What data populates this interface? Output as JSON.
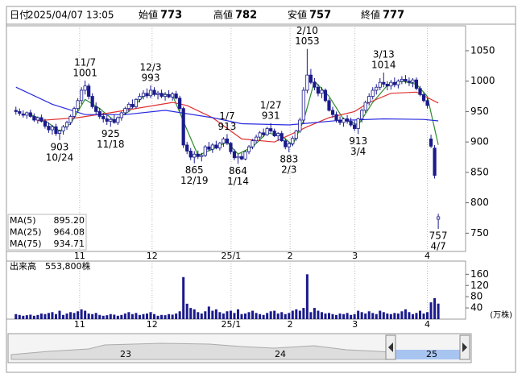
{
  "chart_data": {
    "type": "candlestick",
    "header": [
      {
        "label": "日付",
        "value": "2025/04/07 13:05"
      },
      {
        "label": "始値",
        "value": 773,
        "color": "#000000"
      },
      {
        "label": "高値",
        "value": 782,
        "color": "#dd0000"
      },
      {
        "label": "安値",
        "value": 757,
        "color": "#008000"
      },
      {
        "label": "終値",
        "value": 777,
        "color": "#000000"
      }
    ],
    "ylim": [
      720,
      1091
    ],
    "yticks": [
      750,
      800,
      850,
      900,
      950,
      1000,
      1050
    ],
    "xlim": [
      -2.6,
      123.5
    ],
    "xticks": [
      {
        "value": 17.5,
        "label": "11"
      },
      {
        "value": 37.4,
        "label": "12"
      },
      {
        "value": 59.1,
        "label": "25/1"
      },
      {
        "value": 75.3,
        "label": "2"
      },
      {
        "value": 93.1,
        "label": "3"
      },
      {
        "value": 113,
        "label": "4"
      }
    ],
    "up_color": "#ffffff",
    "down_color": "#1a1a8c",
    "candles": [
      [
        952,
        958,
        945,
        950
      ],
      [
        950,
        955,
        943,
        947
      ],
      [
        946,
        952,
        940,
        944
      ],
      [
        944,
        950,
        938,
        948
      ],
      [
        948,
        953,
        940,
        942
      ],
      [
        942,
        947,
        933,
        936
      ],
      [
        936,
        942,
        930,
        940
      ],
      [
        940,
        945,
        932,
        934
      ],
      [
        934,
        938,
        922,
        926
      ],
      [
        926,
        932,
        915,
        920
      ],
      [
        920,
        928,
        912,
        925
      ],
      [
        925,
        930,
        910,
        914
      ],
      [
        914,
        920,
        903,
        918
      ],
      [
        918,
        928,
        912,
        925
      ],
      [
        925,
        935,
        920,
        932
      ],
      [
        932,
        945,
        928,
        942
      ],
      [
        942,
        958,
        938,
        955
      ],
      [
        955,
        972,
        950,
        968
      ],
      [
        968,
        990,
        962,
        985
      ],
      [
        985,
        1001,
        978,
        992
      ],
      [
        992,
        996,
        970,
        975
      ],
      [
        975,
        980,
        955,
        958
      ],
      [
        958,
        965,
        945,
        950
      ],
      [
        950,
        956,
        938,
        942
      ],
      [
        942,
        948,
        932,
        938
      ],
      [
        938,
        944,
        928,
        934
      ],
      [
        934,
        940,
        925,
        937
      ],
      [
        937,
        945,
        930,
        932
      ],
      [
        932,
        942,
        928,
        940
      ],
      [
        940,
        950,
        935,
        948
      ],
      [
        948,
        958,
        944,
        955
      ],
      [
        955,
        965,
        950,
        962
      ],
      [
        962,
        970,
        955,
        958
      ],
      [
        958,
        972,
        955,
        970
      ],
      [
        970,
        980,
        965,
        975
      ],
      [
        975,
        985,
        970,
        980
      ],
      [
        980,
        988,
        972,
        976
      ],
      [
        976,
        993,
        972,
        985
      ],
      [
        985,
        990,
        975,
        978
      ],
      [
        978,
        984,
        970,
        980
      ],
      [
        980,
        986,
        972,
        975
      ],
      [
        975,
        982,
        968,
        978
      ],
      [
        978,
        985,
        972,
        974
      ],
      [
        974,
        982,
        968,
        979
      ],
      [
        979,
        984,
        970,
        972
      ],
      [
        972,
        976,
        950,
        955
      ],
      [
        955,
        958,
        890,
        895
      ],
      [
        895,
        900,
        880,
        885
      ],
      [
        885,
        890,
        870,
        875
      ],
      [
        875,
        885,
        865,
        880
      ],
      [
        880,
        886,
        872,
        876
      ],
      [
        876,
        882,
        868,
        878
      ],
      [
        878,
        895,
        875,
        892
      ],
      [
        892,
        900,
        885,
        888
      ],
      [
        888,
        898,
        882,
        895
      ],
      [
        895,
        902,
        888,
        890
      ],
      [
        890,
        900,
        886,
        898
      ],
      [
        898,
        908,
        892,
        905
      ],
      [
        905,
        913,
        895,
        898
      ],
      [
        898,
        900,
        880,
        884
      ],
      [
        884,
        888,
        870,
        874
      ],
      [
        874,
        880,
        864,
        876
      ],
      [
        876,
        882,
        870,
        872
      ],
      [
        872,
        886,
        870,
        884
      ],
      [
        884,
        895,
        880,
        892
      ],
      [
        892,
        905,
        888,
        902
      ],
      [
        902,
        912,
        898,
        908
      ],
      [
        908,
        918,
        902,
        915
      ],
      [
        915,
        922,
        908,
        912
      ],
      [
        912,
        925,
        910,
        922
      ],
      [
        922,
        931,
        915,
        918
      ],
      [
        918,
        922,
        908,
        910
      ],
      [
        910,
        916,
        902,
        914
      ],
      [
        914,
        918,
        900,
        902
      ],
      [
        902,
        906,
        888,
        892
      ],
      [
        892,
        900,
        883,
        897
      ],
      [
        897,
        910,
        893,
        906
      ],
      [
        906,
        920,
        902,
        918
      ],
      [
        918,
        940,
        915,
        936
      ],
      [
        936,
        990,
        930,
        985
      ],
      [
        985,
        1053,
        980,
        1010
      ],
      [
        1010,
        1020,
        995,
        998
      ],
      [
        998,
        1005,
        985,
        990
      ],
      [
        990,
        995,
        975,
        980
      ],
      [
        980,
        990,
        972,
        985
      ],
      [
        985,
        988,
        965,
        968
      ],
      [
        968,
        972,
        950,
        952
      ],
      [
        952,
        958,
        940,
        945
      ],
      [
        945,
        950,
        932,
        936
      ],
      [
        936,
        942,
        928,
        932
      ],
      [
        932,
        940,
        925,
        938
      ],
      [
        938,
        944,
        930,
        934
      ],
      [
        934,
        940,
        925,
        928
      ],
      [
        928,
        935,
        918,
        922
      ],
      [
        922,
        940,
        913,
        938
      ],
      [
        938,
        955,
        932,
        952
      ],
      [
        952,
        968,
        948,
        965
      ],
      [
        965,
        980,
        960,
        975
      ],
      [
        975,
        990,
        970,
        985
      ],
      [
        985,
        995,
        978,
        990
      ],
      [
        990,
        1005,
        985,
        998
      ],
      [
        998,
        1014,
        990,
        995
      ],
      [
        995,
        1000,
        985,
        992
      ],
      [
        992,
        1002,
        986,
        998
      ],
      [
        998,
        1006,
        990,
        994
      ],
      [
        994,
        1003,
        988,
        1000
      ],
      [
        1000,
        1008,
        995,
        1003
      ],
      [
        1003,
        1010,
        996,
        1000
      ],
      [
        1000,
        1006,
        992,
        998
      ],
      [
        998,
        1005,
        990,
        1002
      ],
      [
        1002,
        1006,
        985,
        988
      ],
      [
        988,
        992,
        975,
        978
      ],
      [
        978,
        982,
        965,
        968
      ],
      [
        968,
        972,
        955,
        960
      ],
      [
        905,
        912,
        890,
        893
      ],
      [
        890,
        895,
        840,
        845
      ],
      [
        773,
        782,
        757,
        777
      ]
    ],
    "annotations": [
      {
        "x": 12,
        "date": "10/24",
        "value": 903
      },
      {
        "x": 19,
        "date": "11/7",
        "value": 1001
      },
      {
        "x": 26,
        "date": "11/18",
        "value": 925
      },
      {
        "x": 37,
        "date": "12/3",
        "value": 993
      },
      {
        "x": 49,
        "date": "12/19",
        "value": 865
      },
      {
        "x": 58,
        "date": "1/7",
        "value": 913
      },
      {
        "x": 61,
        "date": "1/14",
        "value": 864
      },
      {
        "x": 70,
        "date": "1/27",
        "value": 931
      },
      {
        "x": 75,
        "date": "2/3",
        "value": 883
      },
      {
        "x": 80,
        "date": "2/10",
        "value": 1053
      },
      {
        "x": 94,
        "date": "3/4",
        "value": 913
      },
      {
        "x": 101,
        "date": "3/13",
        "value": 1014
      },
      {
        "x": 116,
        "date": "4/7",
        "value": 757
      }
    ],
    "series": [
      {
        "name": "MA(5)",
        "color": "#2e8b2e",
        "x": [
          4,
          8,
          12,
          15,
          19,
          23,
          27,
          31,
          35,
          39,
          43,
          47,
          50,
          54,
          58,
          61,
          65,
          69,
          73,
          76,
          79,
          82,
          86,
          90,
          94,
          98,
          102,
          106,
          110,
          113,
          116
        ],
        "values": [
          945,
          935,
          918,
          930,
          970,
          955,
          935,
          950,
          975,
          980,
          977,
          920,
          878,
          888,
          900,
          880,
          892,
          915,
          910,
          895,
          935,
          1000,
          975,
          937,
          928,
          965,
          993,
          1000,
          995,
          975,
          895.2
        ],
        "last": {
          "value": 895.2,
          "label": "895.20"
        }
      },
      {
        "name": "MA(25)",
        "color": "#e03030",
        "x": [
          6,
          17,
          26,
          36,
          43,
          47,
          54,
          62,
          71,
          80,
          86,
          93,
          97,
          103,
          110,
          116
        ],
        "values": [
          935,
          940,
          948,
          958,
          965,
          960,
          940,
          905,
          900,
          925,
          940,
          950,
          965,
          980,
          982,
          964.08
        ],
        "last": {
          "value": 964.08,
          "label": "964.08"
        }
      },
      {
        "name": "MA(75)",
        "color": "#2a2ae0",
        "x": [
          0,
          10,
          19,
          30,
          41,
          54,
          62,
          75,
          88,
          101,
          112,
          116
        ],
        "values": [
          990,
          962,
          945,
          945,
          952,
          940,
          930,
          928,
          935,
          938,
          937,
          934.71
        ],
        "last": {
          "value": 934.71,
          "label": "934.71"
        }
      }
    ],
    "volume": {
      "title": "出来高",
      "last": {
        "value": 553800,
        "label": "553,800株"
      },
      "unit": "(万株)",
      "color": "#1a1a8c",
      "ylim": [
        0,
        207
      ],
      "yticks": [
        40,
        80,
        120,
        160
      ],
      "values": [
        18,
        15,
        12,
        14,
        16,
        12,
        15,
        20,
        18,
        22,
        25,
        18,
        30,
        15,
        20,
        25,
        22,
        28,
        35,
        30,
        20,
        18,
        22,
        15,
        12,
        14,
        18,
        16,
        12,
        15,
        20,
        25,
        18,
        22,
        15,
        18,
        20,
        25,
        18,
        12,
        15,
        14,
        18,
        16,
        20,
        28,
        150,
        55,
        40,
        35,
        25,
        20,
        28,
        45,
        30,
        35,
        25,
        20,
        28,
        30,
        22,
        35,
        18,
        20,
        25,
        30,
        22,
        18,
        15,
        22,
        28,
        30,
        20,
        25,
        18,
        22,
        30,
        35,
        30,
        40,
        160,
        25,
        40,
        30,
        25,
        20,
        22,
        18,
        15,
        20,
        18,
        22,
        15,
        18,
        30,
        25,
        20,
        28,
        22,
        18,
        30,
        25,
        20,
        18,
        22,
        20,
        28,
        35,
        25,
        18,
        22,
        30,
        20,
        25,
        60,
        75,
        55.38
      ]
    },
    "navigator": [
      "23",
      "24",
      "25"
    ]
  }
}
